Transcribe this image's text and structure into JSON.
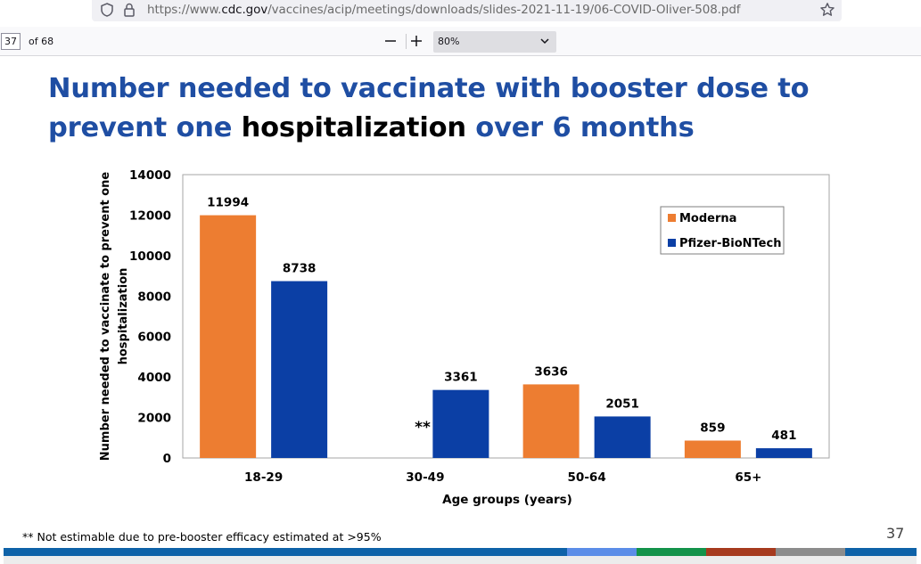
{
  "browser": {
    "url_prefix": "https://www.",
    "url_domain": "cdc.gov",
    "url_path": "/vaccines/acip/meetings/downloads/slides-2021-11-19/06-COVID-Oliver-508.pdf",
    "icons": [
      "shield-icon",
      "lock-icon",
      "star-icon"
    ]
  },
  "pdf_toolbar": {
    "page_number": "37",
    "page_count": "of 68",
    "zoom": "80%",
    "icons": [
      "zoom-out-icon",
      "zoom-in-icon",
      "chevron-down-icon"
    ]
  },
  "slide": {
    "title_part1": "Number needed to vaccinate with booster dose to prevent one",
    "title_part2": "hospitalization",
    "title_part3": "over 6 months",
    "footnote": "** Not estimable due to pre-booster efficacy estimated at >95%",
    "slide_number": "37",
    "title_color": "#1f4ea3"
  },
  "chart_data": {
    "type": "bar",
    "categories": [
      "18-29",
      "30-49",
      "50-64",
      "65+"
    ],
    "series": [
      {
        "name": "Moderna",
        "color": "#ed7d31",
        "values": [
          11994,
          null,
          3636,
          859
        ]
      },
      {
        "name": "Pfizer-BioNTech",
        "color": "#0b3fa5",
        "values": [
          8738,
          3361,
          2051,
          481
        ]
      }
    ],
    "y_ticks": [
      "0",
      "2000",
      "4000",
      "6000",
      "8000",
      "10000",
      "12000",
      "14000"
    ],
    "ylim": [
      0,
      14000
    ],
    "ylabel_line1": "Number needed to vaccinate to prevent one",
    "ylabel_line2": "hospitalization",
    "xlabel": "Age groups (years)",
    "annotation": "**",
    "legend_position": "top-right",
    "grid": false
  }
}
